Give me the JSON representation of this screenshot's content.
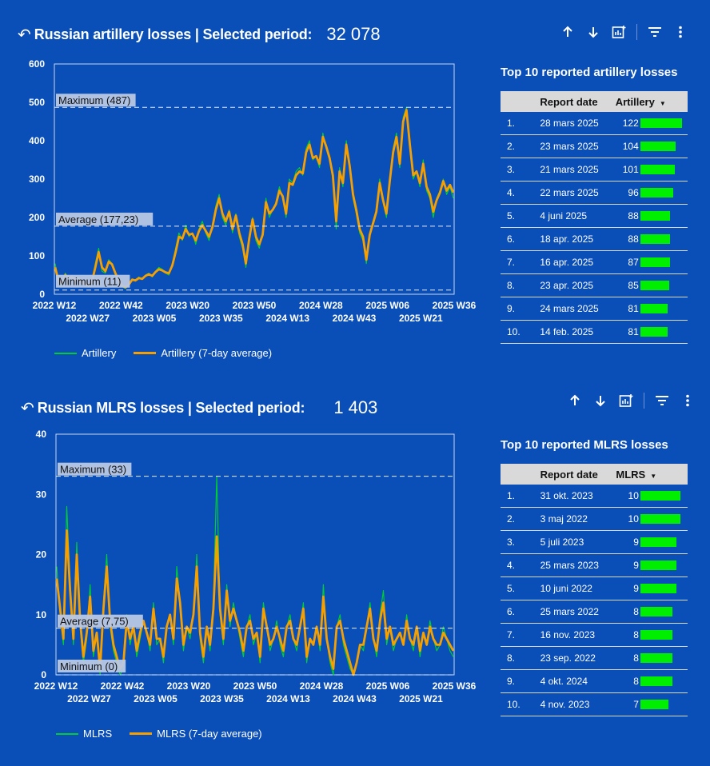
{
  "colors": {
    "background": "#0a4eb8",
    "raw": "#00cc33",
    "avg": "#f5a000",
    "bar": "#00ee00",
    "header": "#d9d9d9"
  },
  "toolbar_icons": [
    "arrow-up-icon",
    "arrow-down-icon",
    "chart-add-icon",
    "filter-icon",
    "more-vert-icon"
  ],
  "artillery": {
    "title": "Russian artillery losses | Selected period:",
    "total": "32 078",
    "top10_title": "Top 10 reported artillery losses",
    "table_headers": {
      "date": "Report date",
      "value": "Artillery"
    },
    "top10": [
      {
        "rank": "1.",
        "date": "28 mars 2025",
        "value": 122
      },
      {
        "rank": "2.",
        "date": "23 mars 2025",
        "value": 104
      },
      {
        "rank": "3.",
        "date": "21 mars 2025",
        "value": 101
      },
      {
        "rank": "4.",
        "date": "22 mars 2025",
        "value": 96
      },
      {
        "rank": "5.",
        "date": "4 juni 2025",
        "value": 88
      },
      {
        "rank": "6.",
        "date": "18 apr. 2025",
        "value": 88
      },
      {
        "rank": "7.",
        "date": "16 apr. 2025",
        "value": 87
      },
      {
        "rank": "8.",
        "date": "23 apr. 2025",
        "value": 85
      },
      {
        "rank": "9.",
        "date": "24 mars 2025",
        "value": 81
      },
      {
        "rank": "10.",
        "date": "14 feb. 2025",
        "value": 81
      }
    ],
    "legend": {
      "raw": "Artillery",
      "avg": "Artillery (7-day average)"
    },
    "chart_data": {
      "type": "line",
      "ylim": [
        0,
        600
      ],
      "y_ticks": [
        0,
        100,
        200,
        300,
        400,
        500,
        600
      ],
      "x_ticks_top": [
        "2022 W12",
        "2022 W42",
        "2023 W20",
        "2023 W50",
        "2024 W28",
        "2025 W06",
        "2025 W36"
      ],
      "x_ticks_bottom": [
        "2022 W27",
        "2023 W05",
        "2023 W35",
        "2024 W13",
        "2024 W43",
        "2025 W21"
      ],
      "reference_lines": [
        {
          "label": "Maximum (487)",
          "value": 487
        },
        {
          "label": "Average (177,23)",
          "value": 177.23
        },
        {
          "label": "Minimum (11)",
          "value": 11
        }
      ],
      "series": [
        {
          "name": "Artillery",
          "values": [
            80,
            30,
            20,
            55,
            40,
            48,
            35,
            45,
            30,
            25,
            20,
            35,
            80,
            120,
            60,
            55,
            90,
            80,
            50,
            30,
            20,
            15,
            25,
            40,
            35,
            45,
            40,
            50,
            55,
            45,
            60,
            70,
            65,
            55,
            50,
            80,
            120,
            160,
            140,
            180,
            150,
            160,
            130,
            170,
            190,
            160,
            140,
            180,
            230,
            260,
            200,
            180,
            220,
            160,
            210,
            150,
            120,
            70,
            150,
            200,
            140,
            120,
            160,
            250,
            200,
            220,
            240,
            280,
            250,
            200,
            300,
            290,
            320,
            330,
            310,
            380,
            400,
            350,
            360,
            330,
            420,
            380,
            350,
            300,
            170,
            330,
            280,
            400,
            330,
            250,
            210,
            160,
            140,
            80,
            160,
            190,
            220,
            300,
            240,
            200,
            300,
            380,
            420,
            330,
            460,
            487,
            380,
            300,
            320,
            280,
            350,
            270,
            250,
            200,
            250,
            270,
            300,
            260,
            280,
            250
          ]
        },
        {
          "name": "Artillery (7-day average)",
          "values": [
            70,
            35,
            28,
            50,
            42,
            45,
            38,
            40,
            32,
            27,
            22,
            33,
            70,
            110,
            70,
            60,
            85,
            78,
            55,
            35,
            22,
            18,
            25,
            38,
            36,
            42,
            40,
            48,
            52,
            48,
            58,
            65,
            62,
            57,
            55,
            75,
            110,
            150,
            145,
            170,
            155,
            158,
            140,
            165,
            180,
            165,
            150,
            175,
            220,
            250,
            210,
            190,
            215,
            170,
            205,
            160,
            130,
            80,
            145,
            195,
            150,
            130,
            155,
            240,
            210,
            220,
            235,
            270,
            255,
            210,
            290,
            285,
            310,
            320,
            315,
            370,
            390,
            355,
            360,
            340,
            410,
            385,
            355,
            310,
            190,
            320,
            290,
            390,
            335,
            260,
            220,
            170,
            150,
            90,
            155,
            185,
            215,
            290,
            245,
            210,
            295,
            370,
            410,
            340,
            450,
            480,
            390,
            310,
            320,
            290,
            340,
            280,
            260,
            215,
            245,
            265,
            295,
            270,
            285,
            265
          ]
        }
      ]
    }
  },
  "mlrs": {
    "title": "Russian MLRS losses | Selected period:",
    "total": "1 403",
    "top10_title": "Top 10 reported MLRS losses",
    "table_headers": {
      "date": "Report date",
      "value": "MLRS"
    },
    "top10": [
      {
        "rank": "1.",
        "date": "31 okt. 2023",
        "value": 10
      },
      {
        "rank": "2.",
        "date": "3 maj 2022",
        "value": 10
      },
      {
        "rank": "3.",
        "date": "5 juli 2023",
        "value": 9
      },
      {
        "rank": "4.",
        "date": "25 mars 2023",
        "value": 9
      },
      {
        "rank": "5.",
        "date": "10 juni 2022",
        "value": 9
      },
      {
        "rank": "6.",
        "date": "25 mars 2022",
        "value": 8
      },
      {
        "rank": "7.",
        "date": "16 nov. 2023",
        "value": 8
      },
      {
        "rank": "8.",
        "date": "23 sep. 2022",
        "value": 8
      },
      {
        "rank": "9.",
        "date": "4 okt. 2024",
        "value": 8
      },
      {
        "rank": "10.",
        "date": "4 nov. 2023",
        "value": 7
      }
    ],
    "legend": {
      "raw": "MLRS",
      "avg": "MLRS (7-day average)"
    },
    "chart_data": {
      "type": "line",
      "ylim": [
        0,
        40
      ],
      "y_ticks": [
        0,
        10,
        20,
        30,
        40
      ],
      "x_ticks_top": [
        "2022 W12",
        "2022 W42",
        "2023 W20",
        "2023 W50",
        "2024 W28",
        "2025 W06",
        "2025 W36"
      ],
      "x_ticks_bottom": [
        "2022 W27",
        "2023 W05",
        "2023 W35",
        "2024 W13",
        "2024 W43",
        "2025 W21"
      ],
      "reference_lines": [
        {
          "label": "Maximum (33)",
          "value": 33
        },
        {
          "label": "Average (7,75)",
          "value": 7.75
        },
        {
          "label": "Minimum (0)",
          "value": 0
        }
      ],
      "series": [
        {
          "name": "MLRS",
          "values": [
            18,
            10,
            5,
            28,
            15,
            5,
            22,
            8,
            2,
            6,
            15,
            3,
            7,
            0,
            12,
            20,
            8,
            4,
            2,
            0,
            1,
            10,
            5,
            8,
            3,
            6,
            9,
            7,
            4,
            12,
            5,
            6,
            2,
            8,
            10,
            5,
            18,
            12,
            4,
            8,
            6,
            10,
            20,
            6,
            2,
            8,
            4,
            12,
            33,
            10,
            5,
            15,
            8,
            12,
            9,
            6,
            3,
            8,
            10,
            5,
            7,
            2,
            12,
            8,
            4,
            6,
            9,
            5,
            3,
            8,
            10,
            6,
            4,
            8,
            12,
            2,
            6,
            5,
            8,
            4,
            15,
            6,
            2,
            0,
            8,
            10,
            5,
            3,
            1,
            0,
            2,
            5,
            4,
            8,
            12,
            6,
            3,
            10,
            14,
            5,
            8,
            4,
            6,
            7,
            5,
            10,
            6,
            4,
            8,
            3,
            7,
            5,
            9,
            6,
            4,
            5,
            8,
            6,
            4,
            3
          ]
        },
        {
          "name": "MLRS (7-day average)",
          "values": [
            16,
            11,
            6,
            24,
            14,
            6,
            20,
            9,
            3,
            7,
            13,
            4,
            7,
            1,
            11,
            18,
            9,
            5,
            3,
            1,
            2,
            9,
            6,
            8,
            4,
            7,
            9,
            7,
            5,
            11,
            6,
            6,
            3,
            8,
            10,
            6,
            16,
            12,
            5,
            8,
            7,
            10,
            18,
            7,
            3,
            8,
            5,
            11,
            23,
            11,
            6,
            14,
            9,
            11,
            9,
            7,
            4,
            8,
            9,
            6,
            7,
            3,
            11,
            8,
            5,
            6,
            8,
            6,
            4,
            8,
            9,
            6,
            5,
            8,
            11,
            3,
            6,
            5,
            8,
            5,
            13,
            6,
            3,
            1,
            8,
            9,
            6,
            4,
            2,
            0,
            2,
            5,
            5,
            8,
            11,
            6,
            4,
            9,
            12,
            6,
            8,
            5,
            6,
            7,
            5,
            9,
            6,
            5,
            8,
            4,
            7,
            5,
            8,
            6,
            5,
            5,
            7,
            6,
            5,
            4
          ]
        }
      ]
    }
  }
}
